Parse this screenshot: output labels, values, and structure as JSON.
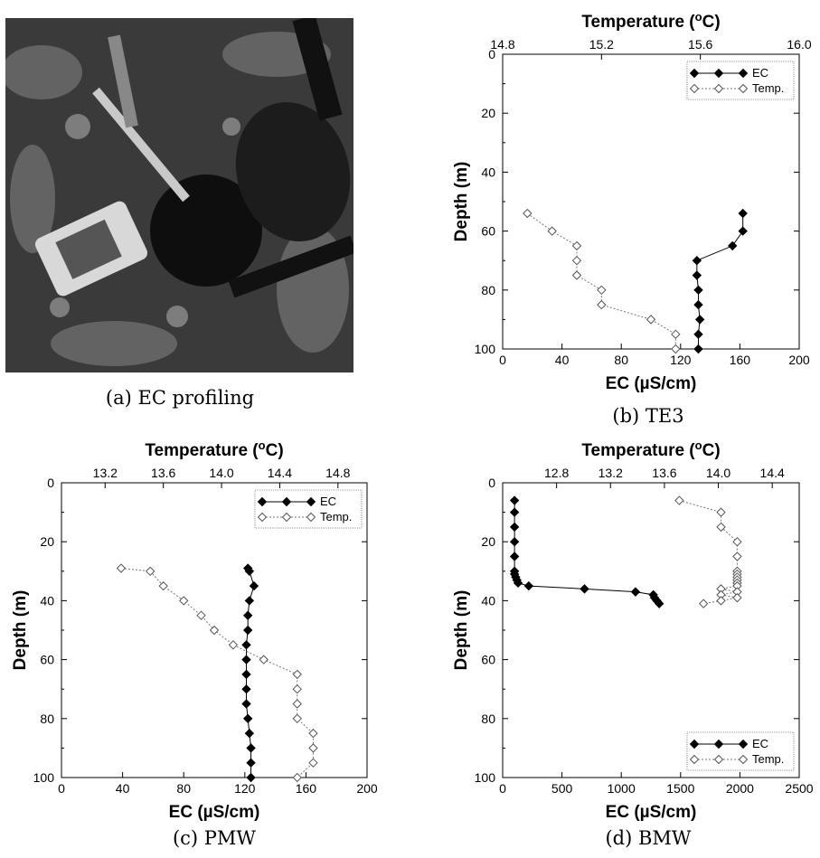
{
  "captions": {
    "a": "(a)  EC  profiling",
    "b": "(b)  TE3",
    "c": "(c)  PMW",
    "d": "(d)  BMW"
  },
  "photo": {
    "description_icon": "ec-profiling-photo"
  },
  "chart_data": [
    {
      "id": "TE3",
      "type": "scatter",
      "y_axis": {
        "label": "Depth (m)",
        "range": [
          0,
          100
        ],
        "ticks": [
          0,
          20,
          40,
          60,
          80,
          100
        ],
        "reversed": true
      },
      "x_bottom": {
        "label": "EC (µS/cm)",
        "range": [
          0,
          200
        ],
        "ticks": [
          0,
          40,
          80,
          120,
          160,
          200
        ]
      },
      "x_top": {
        "label": "Temperature (°C)",
        "range": [
          14.8,
          16.0
        ],
        "ticks": [
          "14.8",
          "15.2",
          "15.6",
          "16.0"
        ]
      },
      "legend": {
        "position": "top-right",
        "entries": [
          "EC",
          "Temp."
        ]
      },
      "series": [
        {
          "name": "EC",
          "axis": "bottom",
          "marker": "filled-diamond",
          "points": [
            [
              162,
              54
            ],
            [
              162,
              60
            ],
            [
              155,
              65
            ],
            [
              131,
              70
            ],
            [
              131,
              75
            ],
            [
              132,
              80
            ],
            [
              132,
              85
            ],
            [
              133,
              90
            ],
            [
              132,
              95
            ],
            [
              132,
              100
            ]
          ]
        },
        {
          "name": "Temp.",
          "axis": "top",
          "marker": "open-diamond",
          "points": [
            [
              14.9,
              54
            ],
            [
              15.0,
              60
            ],
            [
              15.1,
              65
            ],
            [
              15.1,
              70
            ],
            [
              15.1,
              75
            ],
            [
              15.2,
              80
            ],
            [
              15.2,
              85
            ],
            [
              15.4,
              90
            ],
            [
              15.5,
              95
            ],
            [
              15.5,
              100
            ]
          ]
        }
      ]
    },
    {
      "id": "PMW",
      "type": "scatter",
      "y_axis": {
        "label": "Depth (m)",
        "range": [
          0,
          100
        ],
        "ticks": [
          0,
          20,
          40,
          60,
          80,
          100
        ],
        "reversed": true
      },
      "x_bottom": {
        "label": "EC (µS/cm)",
        "range": [
          0,
          200
        ],
        "ticks": [
          0,
          40,
          80,
          120,
          160,
          200
        ]
      },
      "x_top": {
        "label": "Temperature (°C)",
        "range": [
          12.9,
          15.0
        ],
        "ticks": [
          "13.2",
          "13.6",
          "14.0",
          "14.4",
          "14.8"
        ]
      },
      "legend": {
        "position": "top-right",
        "entries": [
          "EC",
          "Temp."
        ]
      },
      "series": [
        {
          "name": "EC",
          "axis": "bottom",
          "marker": "filled-diamond",
          "points": [
            [
              122,
              29
            ],
            [
              123,
              30
            ],
            [
              126,
              35
            ],
            [
              123,
              40
            ],
            [
              122,
              45
            ],
            [
              122,
              50
            ],
            [
              121,
              55
            ],
            [
              121,
              60
            ],
            [
              121,
              65
            ],
            [
              121,
              70
            ],
            [
              121,
              75
            ],
            [
              122,
              80
            ],
            [
              123,
              85
            ],
            [
              124,
              90
            ],
            [
              124,
              95
            ],
            [
              124,
              100
            ]
          ]
        },
        {
          "name": "Temp.",
          "axis": "top",
          "marker": "open-diamond",
          "points": [
            [
              13.31,
              29
            ],
            [
              13.51,
              30
            ],
            [
              13.6,
              35
            ],
            [
              13.74,
              40
            ],
            [
              13.86,
              45
            ],
            [
              13.95,
              50
            ],
            [
              14.08,
              55
            ],
            [
              14.29,
              60
            ],
            [
              14.52,
              65
            ],
            [
              14.52,
              70
            ],
            [
              14.52,
              75
            ],
            [
              14.52,
              80
            ],
            [
              14.63,
              85
            ],
            [
              14.63,
              90
            ],
            [
              14.63,
              95
            ],
            [
              14.52,
              100
            ]
          ]
        }
      ]
    },
    {
      "id": "BMW",
      "type": "scatter",
      "y_axis": {
        "label": "Depth (m)",
        "range": [
          0,
          100
        ],
        "ticks": [
          0,
          20,
          40,
          60,
          80,
          100
        ],
        "reversed": true
      },
      "x_bottom": {
        "label": "EC (µS/cm)",
        "range": [
          0,
          2500
        ],
        "ticks": [
          0,
          500,
          1000,
          1500,
          2000,
          2500
        ]
      },
      "x_top": {
        "label": "Temperature (°C)",
        "range": [
          12.4,
          14.6
        ],
        "ticks": [
          "12.8",
          "13.2",
          "13.6",
          "14.0",
          "14.4"
        ]
      },
      "legend": {
        "position": "bottom-right",
        "entries": [
          "EC",
          "Temp."
        ]
      },
      "series": [
        {
          "name": "EC",
          "axis": "bottom",
          "marker": "filled-diamond",
          "points": [
            [
              100,
              6
            ],
            [
              100,
              10
            ],
            [
              100,
              15
            ],
            [
              100,
              20
            ],
            [
              100,
              25
            ],
            [
              100,
              30
            ],
            [
              100,
              31
            ],
            [
              110,
              32
            ],
            [
              120,
              33
            ],
            [
              130,
              34
            ],
            [
              220,
              35
            ],
            [
              690,
              36
            ],
            [
              1120,
              37
            ],
            [
              1270,
              38
            ],
            [
              1280,
              39
            ],
            [
              1300,
              40
            ],
            [
              1320,
              41
            ]
          ]
        },
        {
          "name": "Temp.",
          "axis": "top",
          "marker": "open-diamond",
          "points": [
            [
              13.71,
              6
            ],
            [
              14.02,
              10
            ],
            [
              14.02,
              15
            ],
            [
              14.14,
              20
            ],
            [
              14.14,
              25
            ],
            [
              14.14,
              30
            ],
            [
              14.14,
              31
            ],
            [
              14.14,
              32
            ],
            [
              14.14,
              33
            ],
            [
              14.14,
              34
            ],
            [
              14.14,
              35
            ],
            [
              14.02,
              36
            ],
            [
              14.14,
              37
            ],
            [
              14.02,
              38
            ],
            [
              14.14,
              39
            ],
            [
              14.02,
              40
            ],
            [
              13.89,
              41
            ]
          ]
        }
      ]
    }
  ]
}
